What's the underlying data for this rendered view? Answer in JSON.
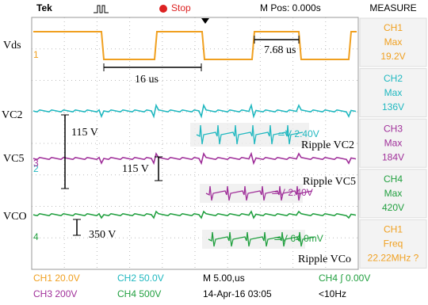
{
  "header": {
    "brand": "Tek",
    "status": "Stop",
    "position": "M Pos: 0.000s",
    "menu": "MEASURE"
  },
  "measurements": [
    {
      "channel": "CH1",
      "type": "Max",
      "value": "19.2V"
    },
    {
      "channel": "CH2",
      "type": "Max",
      "value": "136V"
    },
    {
      "channel": "CH3",
      "type": "Max",
      "value": "184V"
    },
    {
      "channel": "CH4",
      "type": "Max",
      "value": "420V"
    },
    {
      "channel": "CH1",
      "type": "Freq",
      "value": "22.22MHz ?"
    }
  ],
  "footer": [
    "CH1 20.0V",
    "CH2 50.0V",
    "M 5.00,us",
    "CH4 ∫ 0.00V",
    "CH3 200V",
    "CH4 500V",
    "14-Apr-16 03:05",
    "<10Hz"
  ],
  "traces": [
    "Vds",
    "VC2",
    "VC5",
    "VCO"
  ],
  "annotations": [
    "16 us",
    "7.68 us",
    "115 V",
    "115 V",
    "350 V",
    "Ripple VC2",
    "Ripple VC5",
    "Ripple VCo"
  ],
  "inset_readouts": [
    "≃V 2.40V",
    "≃V 2.40V",
    "≃V 64.0mV"
  ],
  "channel_markers": [
    "1",
    "2",
    "3",
    "4"
  ]
}
